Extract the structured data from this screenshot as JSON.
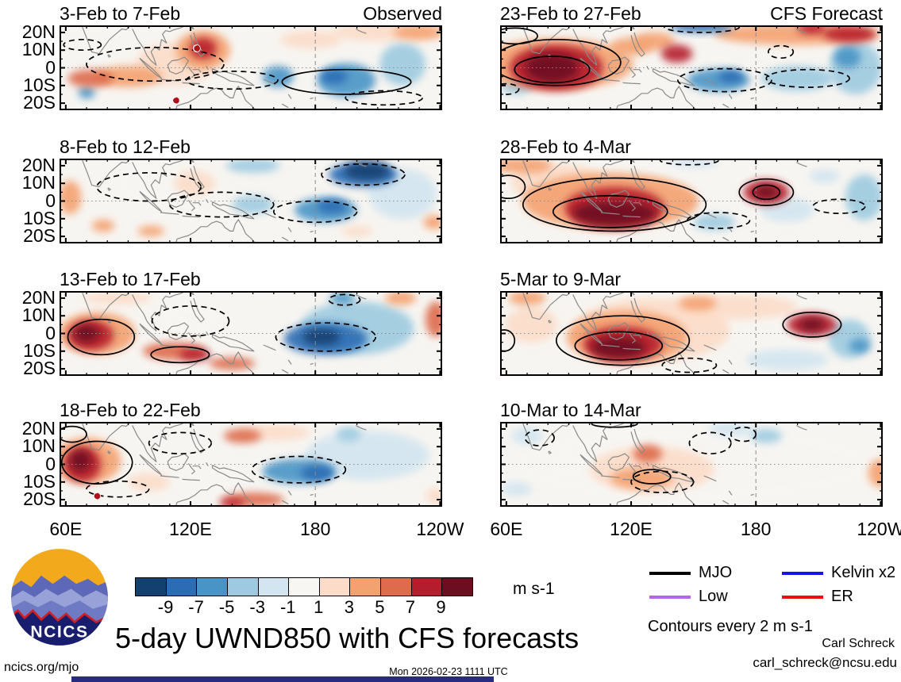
{
  "chart_data": {
    "type": "heatmap",
    "title": "5-day UWND850 with CFS forecasts",
    "contour_note": "Contours every 2 m s-1",
    "column_labels": {
      "observed": "Observed",
      "forecast": "CFS Forecast"
    },
    "axes": {
      "x_ticks": [
        "60E",
        "120E",
        "180",
        "120W"
      ],
      "x_tick_lons": [
        60,
        120,
        180,
        240
      ],
      "x_minor_step": 10,
      "y_ticks": [
        "20N",
        "10N",
        "0",
        "10S",
        "20S"
      ],
      "y_tick_lats": [
        20,
        10,
        0,
        -10,
        -20
      ],
      "y_minor_step": 5,
      "lon_range": [
        57,
        241
      ],
      "lat_range": [
        24,
        -24
      ]
    },
    "colorbar": {
      "levels": [
        -9,
        -7,
        -5,
        -3,
        -1,
        1,
        3,
        5,
        7,
        9
      ],
      "labels": [
        "-9",
        "-7",
        "-5",
        "-3",
        "-1",
        "1",
        "3",
        "5",
        "7",
        "9"
      ],
      "colors": [
        "#12406f",
        "#2c6cb4",
        "#4894c6",
        "#9dcae0",
        "#d3e5f0",
        "#f7f6f3",
        "#fcdcc8",
        "#f4a170",
        "#dd6b4c",
        "#b51c2c",
        "#6d0e20"
      ],
      "unit": "m s-1"
    },
    "legend": {
      "items": [
        {
          "label": "MJO",
          "color": "#000000"
        },
        {
          "label": "Kelvin x2",
          "color": "#1515e6"
        },
        {
          "label": "Low",
          "color": "#b468e8"
        },
        {
          "label": "ER",
          "color": "#ea1010"
        }
      ]
    },
    "style_colors": {
      "coastline": "#8a8a8a",
      "gridline": "#8a8a8a",
      "contour": "#000000",
      "cyclone": "#b01018",
      "panel_background": "#f7f5f1"
    },
    "panels": [
      {
        "title": "3-Feb to 7-Feb",
        "corner_label": "Observed",
        "row": 0,
        "col": 0,
        "fills": [
          [
            213,
            20,
            50,
            10,
            3
          ],
          [
            230,
            20,
            25,
            8,
            4
          ],
          [
            126,
            10,
            26,
            22,
            5
          ],
          [
            126,
            11,
            13,
            12,
            9
          ],
          [
            112,
            2,
            37,
            24,
            2
          ],
          [
            72,
            -6,
            22,
            10,
            7
          ],
          [
            90,
            -5,
            33,
            12,
            4
          ],
          [
            162,
            -5,
            15,
            12,
            -5
          ],
          [
            195,
            -7,
            28,
            19,
            -5
          ],
          [
            189,
            -5,
            13,
            8,
            -7
          ],
          [
            222,
            2,
            22,
            24,
            -3
          ],
          [
            70,
            -14,
            8,
            7,
            -6
          ],
          [
            178,
            16,
            30,
            10,
            2
          ]
        ],
        "contours": [
          [
            195,
            -8,
            62,
            14,
            "s"
          ],
          [
            103,
            2,
            66,
            19,
            "d"
          ],
          [
            140,
            -7,
            44,
            10,
            "d"
          ],
          [
            213,
            -17,
            37,
            8,
            "d"
          ],
          [
            68,
            13,
            18,
            6,
            "d"
          ]
        ],
        "cyclones": [
          [
            123,
            11
          ],
          [
            113,
            -18.5
          ]
        ]
      },
      {
        "title": "23-Feb to 27-Feb",
        "corner_label": "CFS Forecast",
        "row": 0,
        "col": 1,
        "fills": [
          [
            84,
            2,
            74,
            29,
            5
          ],
          [
            84,
            0,
            45,
            26,
            9
          ],
          [
            82,
            0,
            26,
            17,
            10
          ],
          [
            131,
            15,
            20,
            10,
            5
          ],
          [
            142,
            8,
            15,
            10,
            9
          ],
          [
            120,
            12,
            20,
            10,
            4
          ],
          [
            200,
            19,
            80,
            12,
            5
          ],
          [
            225,
            19,
            25,
            9,
            8
          ],
          [
            207,
            22,
            14,
            6,
            8
          ],
          [
            154,
            23,
            30,
            6,
            -7
          ],
          [
            162,
            -7,
            30,
            13,
            -5
          ],
          [
            168,
            -5,
            12,
            7,
            -7
          ],
          [
            200,
            -6,
            35,
            14,
            -3
          ],
          [
            224,
            6,
            13,
            12,
            -5
          ],
          [
            228,
            0,
            25,
            30,
            -3
          ],
          [
            65,
            -10,
            15,
            10,
            -4
          ]
        ],
        "contours": [
          [
            84,
            3,
            62,
            26,
            "s"
          ],
          [
            82,
            -1,
            36,
            15,
            "s"
          ],
          [
            64,
            18,
            22,
            9,
            "s"
          ],
          [
            165,
            -7,
            45,
            13,
            "d"
          ],
          [
            205,
            -6,
            40,
            10,
            "d"
          ],
          [
            192,
            9,
            12,
            7,
            "d"
          ],
          [
            154,
            23,
            36,
            6,
            "d"
          ],
          [
            60,
            -12,
            12,
            6,
            "d"
          ]
        ],
        "cyclones": []
      },
      {
        "title": "8-Feb to 12-Feb",
        "corner_label": "",
        "row": 1,
        "col": 0,
        "fills": [
          [
            222,
            4,
            33,
            29,
            -2
          ],
          [
            203,
            15,
            33,
            14,
            -7
          ],
          [
            205,
            17,
            22,
            10,
            -9
          ],
          [
            62,
            2,
            11,
            19,
            5
          ],
          [
            78,
            -14,
            11,
            7,
            4
          ],
          [
            101,
            -17,
            13,
            6,
            5
          ],
          [
            122,
            10,
            20,
            14,
            2
          ],
          [
            185,
            -5,
            30,
            14,
            -5
          ],
          [
            188,
            -3,
            14,
            8,
            -7
          ],
          [
            150,
            -2,
            20,
            10,
            -3
          ],
          [
            200,
            -17,
            15,
            6,
            3
          ],
          [
            237,
            -12,
            10,
            8,
            4
          ],
          [
            150,
            20,
            26,
            8,
            -3
          ],
          [
            100,
            10,
            30,
            20,
            1
          ]
        ],
        "contours": [
          [
            100,
            8,
            50,
            16,
            "d"
          ],
          [
            135,
            -2,
            50,
            14,
            "d"
          ],
          [
            203,
            15,
            40,
            12,
            "d"
          ],
          [
            180,
            -6,
            40,
            12,
            "d"
          ]
        ],
        "cyclones": []
      },
      {
        "title": "28-Feb to 4-Mar",
        "corner_label": "",
        "row": 1,
        "col": 1,
        "fills": [
          [
            110,
            0,
            85,
            32,
            5
          ],
          [
            112,
            -4,
            48,
            24,
            9
          ],
          [
            112,
            -7,
            40,
            14,
            10
          ],
          [
            185,
            5,
            22,
            14,
            8
          ],
          [
            185,
            5,
            11,
            7,
            10
          ],
          [
            68,
            20,
            28,
            9,
            4
          ],
          [
            85,
            10,
            45,
            22,
            3
          ],
          [
            150,
            22,
            25,
            6,
            -2
          ],
          [
            160,
            -12,
            20,
            9,
            -4
          ],
          [
            195,
            -5,
            26,
            14,
            -2
          ],
          [
            232,
            2,
            18,
            26,
            -3
          ],
          [
            213,
            14,
            15,
            8,
            -2
          ]
        ],
        "contours": [
          [
            112,
            -2,
            88,
            30,
            "s"
          ],
          [
            110,
            -6,
            55,
            18,
            "s"
          ],
          [
            61,
            8,
            16,
            13,
            "s"
          ],
          [
            185,
            5,
            26,
            15,
            "s"
          ],
          [
            185,
            5,
            13,
            8,
            "s"
          ],
          [
            162,
            -11,
            30,
            9,
            "d"
          ],
          [
            220,
            -3,
            25,
            8,
            "d"
          ],
          [
            148,
            23,
            28,
            5,
            "d"
          ]
        ],
        "cyclones": []
      },
      {
        "title": "13-Feb to 17-Feb",
        "corner_label": "",
        "row": 2,
        "col": 0,
        "fills": [
          [
            75,
            0,
            37,
            24,
            5
          ],
          [
            72,
            -1,
            22,
            17,
            9
          ],
          [
            70,
            0,
            12,
            10,
            10
          ],
          [
            112,
            -10,
            30,
            10,
            6
          ],
          [
            122,
            -12,
            15,
            7,
            8
          ],
          [
            140,
            -17,
            22,
            7,
            7
          ],
          [
            185,
            -3,
            40,
            18,
            -7
          ],
          [
            183,
            -2,
            18,
            9,
            -9
          ],
          [
            200,
            3,
            55,
            30,
            -3
          ],
          [
            238,
            8,
            10,
            20,
            6
          ],
          [
            221,
            20,
            15,
            8,
            4
          ],
          [
            193,
            20,
            12,
            7,
            -5
          ],
          [
            85,
            20,
            33,
            7,
            2
          ],
          [
            120,
            8,
            26,
            17,
            1
          ]
        ],
        "contours": [
          [
            77,
            -2,
            32,
            20,
            "s"
          ],
          [
            115,
            -12,
            28,
            9,
            "s"
          ],
          [
            120,
            7,
            37,
            17,
            "d"
          ],
          [
            185,
            -2,
            48,
            16,
            "d"
          ],
          [
            194,
            19,
            15,
            6,
            "d"
          ]
        ],
        "cyclones": []
      },
      {
        "title": "5-Mar to 9-Mar",
        "corner_label": "",
        "row": 2,
        "col": 1,
        "fills": [
          [
            130,
            2,
            75,
            36,
            3
          ],
          [
            118,
            -2,
            58,
            30,
            5
          ],
          [
            116,
            -6,
            38,
            20,
            9
          ],
          [
            114,
            -8,
            26,
            12,
            10
          ],
          [
            207,
            5,
            24,
            13,
            8
          ],
          [
            207,
            5,
            12,
            7,
            10
          ],
          [
            170,
            15,
            60,
            14,
            3
          ],
          [
            152,
            17,
            18,
            8,
            5
          ],
          [
            70,
            20,
            18,
            8,
            4
          ],
          [
            72,
            5,
            25,
            20,
            2
          ],
          [
            225,
            -3,
            20,
            22,
            -3
          ],
          [
            230,
            -7,
            10,
            8,
            -5
          ],
          [
            195,
            -15,
            40,
            12,
            -2
          ]
        ],
        "contours": [
          [
            116,
            -4,
            64,
            28,
            "s"
          ],
          [
            114,
            -7,
            42,
            16,
            "s"
          ],
          [
            207,
            5,
            28,
            14,
            "s"
          ],
          [
            59,
            -4,
            10,
            12,
            "s"
          ],
          [
            148,
            -18,
            26,
            8,
            "d"
          ]
        ],
        "cyclones": []
      },
      {
        "title": "18-Feb to 22-Feb",
        "corner_label": "",
        "row": 3,
        "col": 0,
        "fills": [
          [
            70,
            2,
            33,
            26,
            5
          ],
          [
            68,
            0,
            18,
            20,
            9
          ],
          [
            67,
            2,
            10,
            12,
            10
          ],
          [
            145,
            16,
            18,
            8,
            7
          ],
          [
            160,
            18,
            35,
            9,
            3
          ],
          [
            150,
            -20,
            30,
            8,
            7
          ],
          [
            140,
            -22,
            12,
            5,
            9
          ],
          [
            172,
            -4,
            35,
            14,
            -5
          ],
          [
            181,
            -5,
            16,
            9,
            -8
          ],
          [
            205,
            5,
            60,
            28,
            -2
          ],
          [
            196,
            17,
            12,
            8,
            -4
          ],
          [
            238,
            -18,
            10,
            9,
            3
          ],
          [
            100,
            -10,
            20,
            10,
            2
          ]
        ],
        "contours": [
          [
            75,
            1,
            34,
            24,
            "s"
          ],
          [
            63,
            17,
            14,
            9,
            "s"
          ],
          [
            172,
            -3,
            45,
            15,
            "d"
          ],
          [
            85,
            -14,
            30,
            9,
            "d"
          ],
          [
            115,
            12,
            30,
            12,
            "d"
          ]
        ],
        "cyclones": [
          [
            75,
            -18
          ]
        ]
      },
      {
        "title": "10-Mar to 14-Mar",
        "corner_label": "",
        "row": 3,
        "col": 1,
        "fills": [
          [
            150,
            0,
            170,
            40,
            1
          ],
          [
            130,
            -3,
            60,
            26,
            3
          ],
          [
            128,
            6,
            14,
            10,
            6
          ],
          [
            125,
            -8,
            30,
            12,
            4
          ],
          [
            240,
            -5,
            12,
            16,
            4
          ],
          [
            70,
            16,
            15,
            10,
            -2
          ],
          [
            168,
            20,
            22,
            8,
            -2
          ],
          [
            185,
            16,
            15,
            8,
            -3
          ],
          [
            65,
            -14,
            15,
            8,
            -1
          ],
          [
            90,
            0,
            20,
            14,
            1
          ]
        ],
        "contours": [
          [
            76,
            15,
            14,
            9,
            "d"
          ],
          [
            158,
            12,
            20,
            12,
            "d"
          ],
          [
            174,
            17,
            12,
            8,
            "d"
          ],
          [
            135,
            -10,
            30,
            12,
            "d"
          ],
          [
            130,
            -7,
            18,
            8,
            "s"
          ],
          [
            112,
            23,
            22,
            4,
            "s"
          ]
        ],
        "cyclones": []
      }
    ]
  },
  "footer": {
    "site": "ncics.org/mjo",
    "timestamp": "Mon 2026-02-23 1111 UTC",
    "author": "Carl Schreck",
    "email": "carl_schreck@ncsu.edu",
    "logo_text": "NCICS"
  }
}
